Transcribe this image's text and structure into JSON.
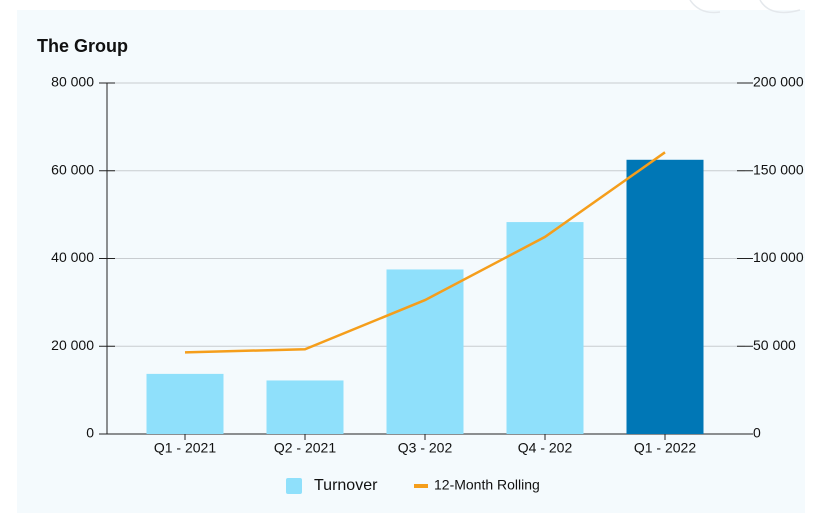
{
  "chart_data": {
    "type": "bar",
    "title": "The Group",
    "categories": [
      "Q1 - 2021",
      "Q2 - 2021",
      "Q3 - 202",
      "Q4 - 202",
      "Q1 - 2022"
    ],
    "series": [
      {
        "name": "Turnover",
        "type": "bar",
        "color": "#8fe0fb",
        "colors": [
          "#8fe0fb",
          "#8fe0fb",
          "#8fe0fb",
          "#8fe0fb",
          "#0077b6"
        ],
        "values": [
          13700,
          12200,
          37500,
          48300,
          62500
        ]
      },
      {
        "name": "12-Month Rolling",
        "type": "line",
        "axis": "y2",
        "color": "#f59e1b",
        "values": [
          46500,
          48300,
          76300,
          112300,
          160500
        ]
      }
    ],
    "ylim": [
      0,
      80000
    ],
    "yticks": [
      {
        "value": 0,
        "label": "0"
      },
      {
        "value": 20000,
        "label": "20 000"
      },
      {
        "value": 40000,
        "label": "40 000"
      },
      {
        "value": 60000,
        "label": "60 000"
      },
      {
        "value": 80000,
        "label": "80 000"
      }
    ],
    "y2lim": [
      0,
      200000
    ],
    "y2ticks": [
      {
        "value": 0,
        "label": "0"
      },
      {
        "value": 50000,
        "label": "50 000"
      },
      {
        "value": 100000,
        "label": "100 000"
      },
      {
        "value": 150000,
        "label": "150 000"
      },
      {
        "value": 200000,
        "label": "200 000"
      }
    ],
    "grid": true,
    "legend": "bottom"
  }
}
